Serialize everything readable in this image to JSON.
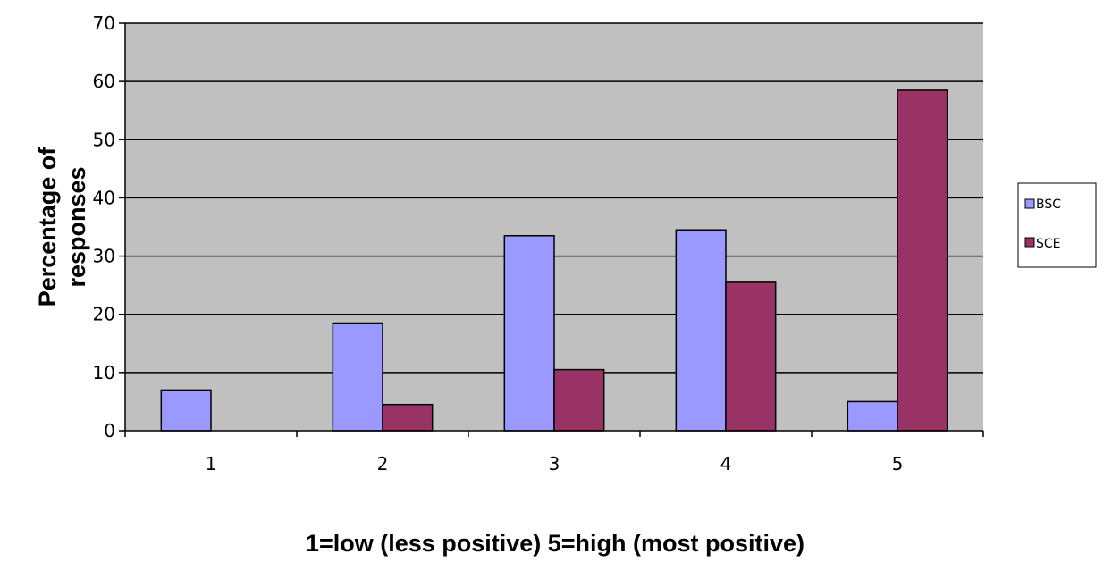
{
  "chart_data": {
    "type": "bar",
    "title": "",
    "xlabel": "1=low (less positive) 5=high (most positive)",
    "ylabel_line1": "Percentage of",
    "ylabel_line2": "responses",
    "categories": [
      "1",
      "2",
      "3",
      "4",
      "5"
    ],
    "series": [
      {
        "name": "BSC",
        "values": [
          7,
          18.5,
          33.5,
          34.5,
          5
        ]
      },
      {
        "name": "SCE",
        "values": [
          0,
          4.5,
          10.5,
          25.5,
          58.5
        ]
      }
    ],
    "ylim": [
      0,
      70
    ],
    "yticks": [
      0,
      10,
      20,
      30,
      40,
      50,
      60,
      70
    ],
    "grid": true,
    "legend_position": "right",
    "colors": {
      "plot_background": "#c0c0c0",
      "BSC": "#9999ff",
      "SCE": "#993366",
      "gridline": "#000000"
    }
  }
}
